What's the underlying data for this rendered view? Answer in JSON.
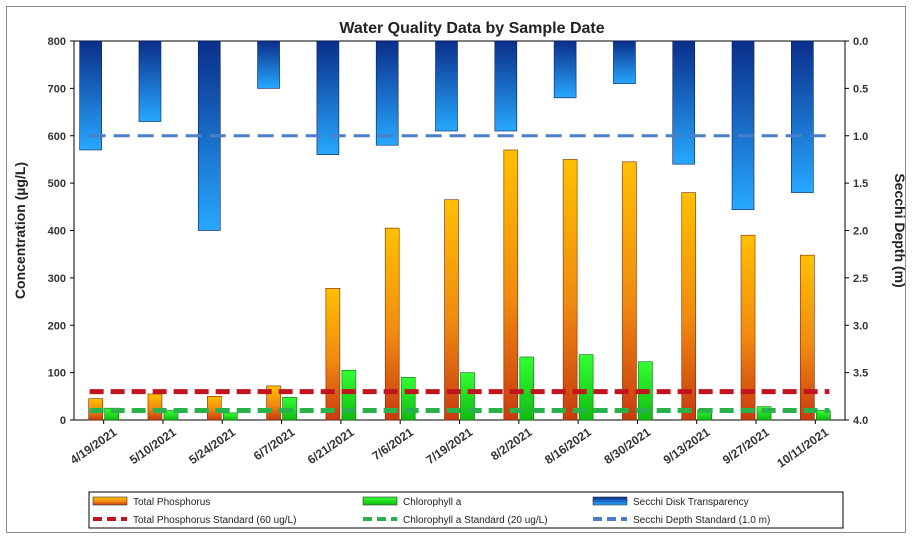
{
  "chart_data": {
    "type": "bar",
    "title": "Water Quality Data by Sample Date",
    "ylabel": "Concentration (µg/L)",
    "y2label": "Secchi Depth (m)",
    "ylim": [
      0,
      800
    ],
    "y2lim": [
      0.0,
      4.0
    ],
    "y2_inverted": true,
    "yticks": [
      "0",
      "100",
      "200",
      "300",
      "400",
      "500",
      "600",
      "700",
      "800"
    ],
    "y2ticks": [
      "0.0",
      "0.5",
      "1.0",
      "1.5",
      "2.0",
      "2.5",
      "3.0",
      "3.5",
      "4.0"
    ],
    "categories": [
      "4/19/2021",
      "5/10/2021",
      "5/24/2021",
      "6/7/2021",
      "6/21/2021",
      "7/6/2021",
      "7/19/2021",
      "8/2/2021",
      "8/16/2021",
      "8/30/2021",
      "9/13/2021",
      "9/27/2021",
      "10/11/2021"
    ],
    "series": [
      {
        "name": "Total Phosphorus",
        "axis": "left",
        "color": "#f5a300",
        "values": [
          45,
          55,
          50,
          72,
          278,
          405,
          465,
          570,
          550,
          545,
          480,
          390,
          348
        ]
      },
      {
        "name": "Chlorophyll a",
        "axis": "left",
        "color": "#22cc22",
        "values": [
          25,
          20,
          15,
          48,
          105,
          90,
          100,
          133,
          138,
          123,
          22,
          28,
          20
        ]
      },
      {
        "name": "Secchi Disk Transparency",
        "axis": "right",
        "color": "#1e5fd0",
        "values": [
          1.15,
          0.85,
          2.0,
          0.5,
          1.2,
          1.1,
          0.95,
          0.95,
          0.6,
          0.45,
          1.3,
          1.78,
          1.6
        ]
      }
    ],
    "reference_lines": [
      {
        "name": "Total Phosphorus Standard (60 ug/L)",
        "axis": "left",
        "value": 60,
        "color": "#c0141e"
      },
      {
        "name": "Chlorophyll a Standard (20 ug/L)",
        "axis": "left",
        "value": 20,
        "color": "#29b24a"
      },
      {
        "name": "Secchi Depth Standard (1.0 m)",
        "axis": "right",
        "value": 1.0,
        "color": "#4a7ec8"
      }
    ],
    "legend_position": "bottom",
    "grid": false
  }
}
